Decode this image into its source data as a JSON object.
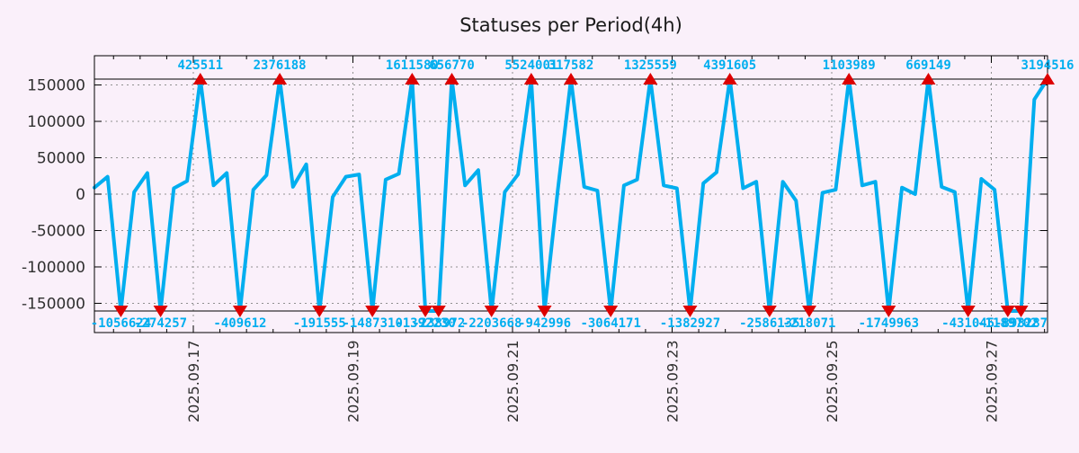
{
  "colors": {
    "background": "#faf0fa",
    "line": "#00aeef",
    "marker": "#dd0000",
    "value_label": "#00aeef",
    "axis_text": "#303030",
    "grid": "#909090",
    "frame": "#000000"
  },
  "chart_data": {
    "type": "line",
    "title": "Statuses per Period(4h)",
    "series_name": "Statuses",
    "period": "4h",
    "ylabel": "",
    "xlabel": "",
    "ylim": [
      -186000,
      186000
    ],
    "clip_value": 158000,
    "grid": "dotted",
    "y_tick_labels": [
      "150000",
      "100000",
      "50000",
      "0",
      "-50000",
      "-100000",
      "-150000"
    ],
    "y_tick_values": [
      150000,
      100000,
      50000,
      0,
      -50000,
      -100000,
      -150000
    ],
    "x_tick_labels": [
      "2025.09.17",
      "2025.09.19",
      "2025.09.21",
      "2025.09.23",
      "2025.09.25",
      "2025.09.27"
    ],
    "points": [
      9000,
      24000,
      -1056624,
      3000,
      29000,
      -274257,
      8000,
      18000,
      425511,
      12000,
      29000,
      -409612,
      6000,
      26000,
      2376188,
      10000,
      41000,
      -191555,
      -4000,
      24000,
      27000,
      -1487310,
      20000,
      28000,
      1611580,
      -1392230,
      -238972,
      656770,
      12000,
      33000,
      -2203668,
      3000,
      27000,
      5524001,
      -942996,
      5000,
      317582,
      10000,
      5000,
      -3064171,
      12000,
      20000,
      1325559,
      12000,
      8000,
      -1382927,
      15000,
      30000,
      4391605,
      8000,
      17000,
      -2586135,
      17000,
      -9000,
      -218071,
      2000,
      6000,
      1103989,
      12000,
      17000,
      -1749963,
      9000,
      0,
      669149,
      10000,
      3000,
      -431045,
      21000,
      6000,
      -1189702,
      -898287,
      130000,
      3194516
    ],
    "peak_markers": [
      {
        "t": 8,
        "label": "425511"
      },
      {
        "t": 14,
        "label": "2376188"
      },
      {
        "t": 24,
        "label": "1611580"
      },
      {
        "t": 27,
        "label": "656770"
      },
      {
        "t": 33,
        "label": "5524001"
      },
      {
        "t": 36,
        "label": "317582"
      },
      {
        "t": 42,
        "label": "1325559"
      },
      {
        "t": 48,
        "label": "4391605"
      },
      {
        "t": 57,
        "label": "1103989"
      },
      {
        "t": 63,
        "label": "669149"
      },
      {
        "t": 72,
        "label": "3194516"
      }
    ],
    "valley_markers": [
      {
        "t": 2,
        "label": "-1056624"
      },
      {
        "t": 5,
        "label": "-274257"
      },
      {
        "t": 11,
        "label": "-409612"
      },
      {
        "t": 17,
        "label": "-191555"
      },
      {
        "t": 21,
        "label": "-1487310"
      },
      {
        "t": 25,
        "label": "-1392230"
      },
      {
        "t": 26,
        "label": "-238972"
      },
      {
        "t": 30,
        "label": "-2203668"
      },
      {
        "t": 34,
        "label": "-942996"
      },
      {
        "t": 39,
        "label": "-3064171"
      },
      {
        "t": 45,
        "label": "-1382927"
      },
      {
        "t": 51,
        "label": "-2586135"
      },
      {
        "t": 54,
        "label": "-218071"
      },
      {
        "t": 60,
        "label": "-1749963"
      },
      {
        "t": 66,
        "label": "-431045"
      },
      {
        "t": 69,
        "label": "-1189702"
      },
      {
        "t": 70,
        "label": "-898287"
      }
    ]
  }
}
